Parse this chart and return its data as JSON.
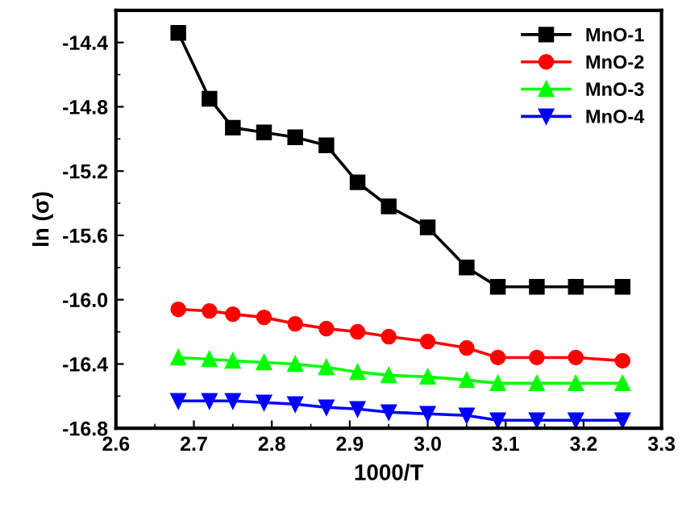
{
  "chart_data": {
    "type": "line",
    "xlabel": "1000/T",
    "ylabel": "ln (σ)",
    "x": [
      2.68,
      2.72,
      2.75,
      2.79,
      2.83,
      2.87,
      2.91,
      2.95,
      3.0,
      3.05,
      3.09,
      3.14,
      3.19,
      3.25
    ],
    "series": [
      {
        "name": "MnO-1",
        "color": "#000000",
        "marker": "square",
        "values": [
          -14.34,
          -14.75,
          -14.93,
          -14.96,
          -14.99,
          -15.04,
          -15.27,
          -15.42,
          -15.55,
          -15.8,
          -15.92,
          -15.92,
          -15.92,
          -15.92
        ]
      },
      {
        "name": "MnO-2",
        "color": "#ff0000",
        "marker": "circle",
        "values": [
          -16.06,
          -16.07,
          -16.09,
          -16.11,
          -16.15,
          -16.18,
          -16.2,
          -16.23,
          -16.26,
          -16.3,
          -16.36,
          -16.36,
          -16.36,
          -16.38
        ]
      },
      {
        "name": "MnO-3",
        "color": "#00ff00",
        "marker": "triangle",
        "values": [
          -16.36,
          -16.37,
          -16.38,
          -16.39,
          -16.4,
          -16.42,
          -16.45,
          -16.47,
          -16.48,
          -16.5,
          -16.52,
          -16.52,
          -16.52,
          -16.52
        ]
      },
      {
        "name": "MnO-4",
        "color": "#0000ff",
        "marker": "triangle_down",
        "values": [
          -16.63,
          -16.63,
          -16.63,
          -16.64,
          -16.65,
          -16.67,
          -16.68,
          -16.7,
          -16.71,
          -16.72,
          -16.75,
          -16.75,
          -16.75,
          -16.75
        ]
      }
    ],
    "xlim": [
      2.6,
      3.3
    ],
    "xticks": [
      2.6,
      2.7,
      2.8,
      2.9,
      {
        "value": 3.0,
        "label": "3.0"
      },
      3.1,
      3.2,
      3.3
    ],
    "ylim": [
      -16.8,
      -14.2
    ],
    "yticks": [
      -16.8,
      -16.4,
      {
        "value": -16.0,
        "label": "-16.0"
      },
      -15.6,
      -15.2,
      -14.8,
      -14.4
    ],
    "grid": false,
    "legend": "top right",
    "line_style": "solid"
  }
}
